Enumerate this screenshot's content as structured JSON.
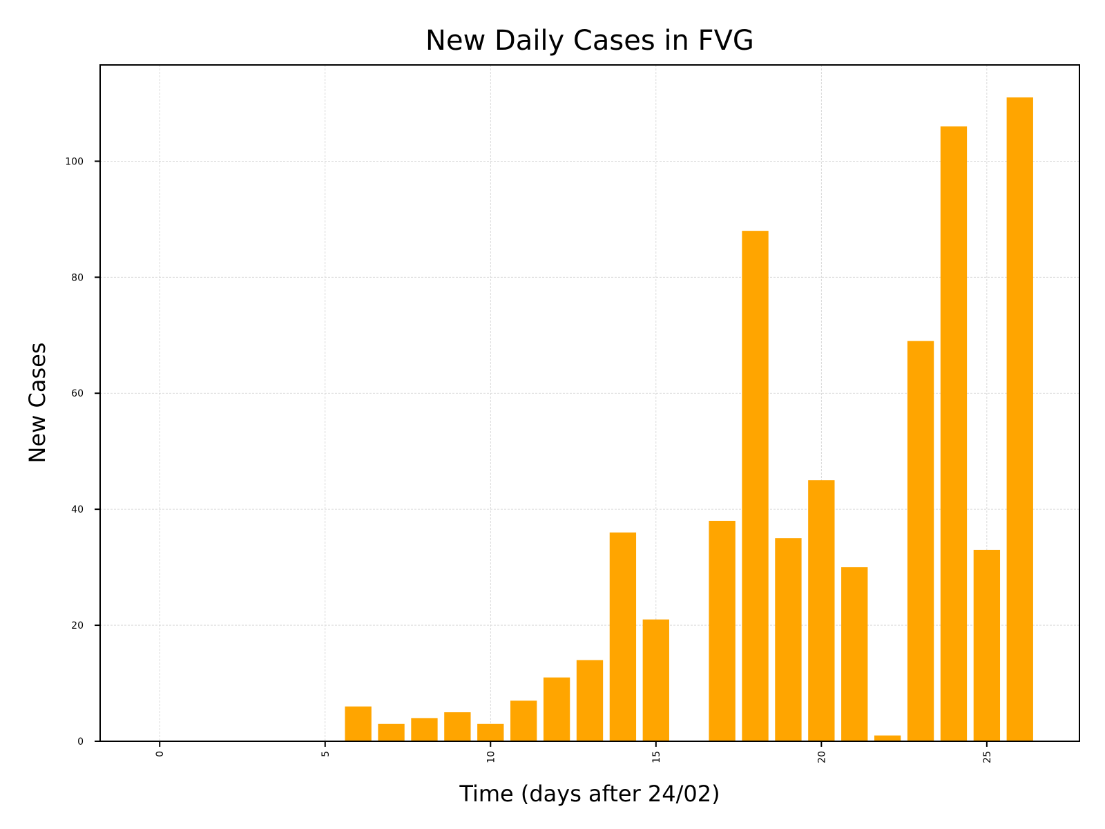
{
  "chart_data": {
    "type": "bar",
    "title": "New Daily Cases in FVG",
    "xlabel": "Time (days after 24/02)",
    "ylabel": "New Cases",
    "x": [
      0,
      1,
      2,
      3,
      4,
      5,
      6,
      7,
      8,
      9,
      10,
      11,
      12,
      13,
      14,
      15,
      16,
      17,
      18,
      19,
      20,
      21,
      22,
      23,
      24,
      25,
      26
    ],
    "values": [
      0,
      0,
      0,
      0,
      0,
      0,
      6,
      3,
      4,
      5,
      3,
      7,
      11,
      14,
      36,
      21,
      0,
      38,
      88,
      35,
      45,
      30,
      1,
      69,
      106,
      33,
      111
    ],
    "xlim": [
      -1.8,
      27.8
    ],
    "ylim": [
      0,
      116.6
    ],
    "xticks": [
      0,
      5,
      10,
      15,
      20,
      25
    ],
    "yticks": [
      0,
      20,
      40,
      60,
      80,
      100
    ],
    "bar_width": 0.8,
    "bar_color": "#ffa500",
    "grid": true
  }
}
